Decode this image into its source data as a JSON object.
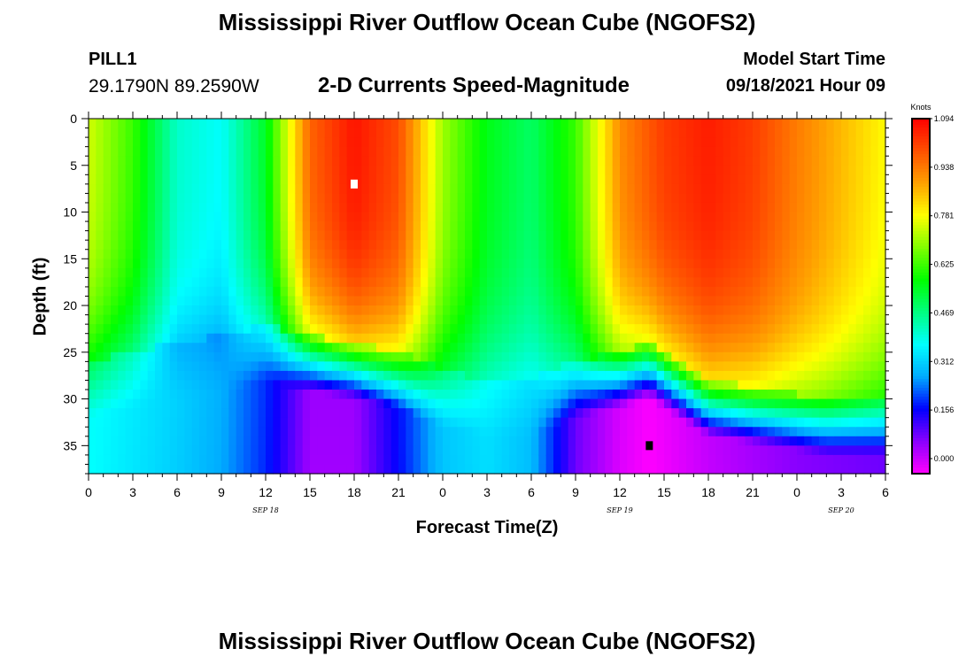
{
  "header": {
    "title": "Mississippi River Outflow Ocean Cube (NGOFS2)",
    "station_id": "PILL1",
    "station_coords": "29.1790N  89.2590W",
    "subtitle": "2-D Currents Speed-Magnitude",
    "model_start_label": "Model Start Time",
    "model_start_value": "09/18/2021 Hour 09"
  },
  "footer": {
    "title": "Mississippi River Outflow Ocean Cube (NGOFS2)"
  },
  "chart_data": {
    "type": "heatmap",
    "title": "2-D Currents Speed-Magnitude",
    "xlabel": "Forecast Time(Z)",
    "ylabel": "Depth (ft)",
    "x_range_hours": [
      0,
      54
    ],
    "x_tick_labels": [
      "0",
      "3",
      "6",
      "9",
      "12",
      "15",
      "18",
      "21",
      "0",
      "3",
      "6",
      "9",
      "12",
      "15",
      "18",
      "21",
      "0",
      "3",
      "6"
    ],
    "date_labels": [
      "SEP 18",
      "SEP 19",
      "SEP 20"
    ],
    "y_range": [
      0,
      38
    ],
    "y_inverted": true,
    "y_ticks": [
      0,
      5,
      10,
      15,
      20,
      25,
      30,
      35
    ],
    "colorbar": {
      "unit": "Knots",
      "labels": [
        "1.094",
        "0.938",
        "0.781",
        "0.625",
        "0.469",
        "0.312",
        "0.156",
        "0.000"
      ],
      "min": 0.0,
      "max": 1.094,
      "colors": [
        "#ff00ff",
        "#8a00ff",
        "#0000ff",
        "#00aaff",
        "#00ffff",
        "#00ff80",
        "#00ff00",
        "#80ff00",
        "#ffff00",
        "#ffa000",
        "#ff5000",
        "#ff0000"
      ]
    },
    "markers": [
      {
        "label": "max",
        "color": "#ffffff",
        "hour": 18,
        "depth": 7
      },
      {
        "label": "min",
        "color": "#000000",
        "hour": 38,
        "depth": 35
      }
    ],
    "speed_pattern": {
      "surface_speed_knots": [
        [
          0,
          0.74
        ],
        [
          3,
          0.62
        ],
        [
          6,
          0.42
        ],
        [
          9,
          0.38
        ],
        [
          12,
          0.55
        ],
        [
          15,
          0.95
        ],
        [
          18,
          1.05
        ],
        [
          21,
          0.98
        ],
        [
          24,
          0.7
        ],
        [
          27,
          0.56
        ],
        [
          30,
          0.5
        ],
        [
          33,
          0.62
        ],
        [
          36,
          0.9
        ],
        [
          39,
          1.0
        ],
        [
          42,
          1.04
        ],
        [
          45,
          1.0
        ],
        [
          48,
          0.92
        ],
        [
          51,
          0.85
        ],
        [
          54,
          0.78
        ]
      ],
      "surface_layer_bottom_ft": [
        [
          0,
          28
        ],
        [
          6,
          26
        ],
        [
          10,
          25
        ],
        [
          12,
          24
        ],
        [
          14,
          25
        ],
        [
          18,
          26
        ],
        [
          21,
          27
        ],
        [
          24,
          29
        ],
        [
          27,
          30
        ],
        [
          30,
          30
        ],
        [
          33,
          28
        ],
        [
          36,
          27
        ],
        [
          38,
          26
        ],
        [
          42,
          30
        ],
        [
          46,
          31
        ],
        [
          50,
          32
        ],
        [
          54,
          32
        ]
      ],
      "bottom_speed_knots": [
        [
          0,
          0.4
        ],
        [
          6,
          0.34
        ],
        [
          9,
          0.3
        ],
        [
          12,
          0.22
        ],
        [
          15,
          0.08
        ],
        [
          18,
          0.08
        ],
        [
          21,
          0.2
        ],
        [
          24,
          0.33
        ],
        [
          27,
          0.36
        ],
        [
          30,
          0.32
        ],
        [
          33,
          0.12
        ],
        [
          36,
          0.03
        ],
        [
          38,
          0.0
        ],
        [
          42,
          0.05
        ],
        [
          48,
          0.1
        ],
        [
          54,
          0.12
        ]
      ]
    }
  }
}
